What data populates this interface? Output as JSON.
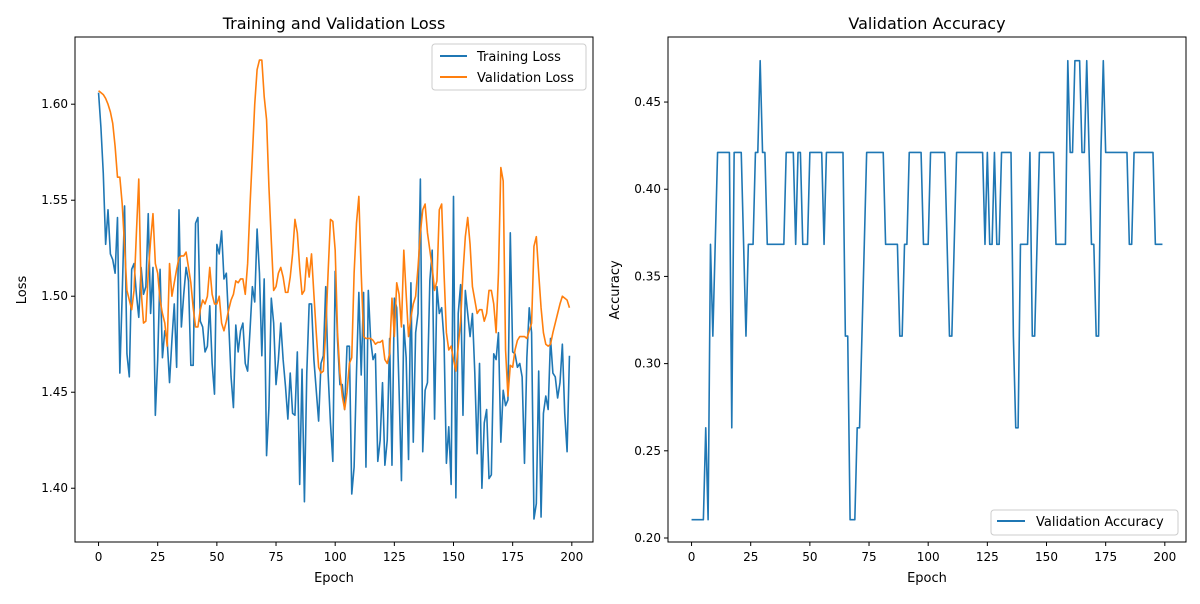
{
  "chart_data": [
    {
      "type": "line",
      "title": "Training and Validation Loss",
      "xlabel": "Epoch",
      "ylabel": "Loss",
      "xlim": [
        -9.95,
        208.95
      ],
      "ylim": [
        1.372,
        1.635
      ],
      "xticks": [
        0,
        25,
        50,
        75,
        100,
        125,
        150,
        175,
        200
      ],
      "yticks": [
        1.4,
        1.45,
        1.5,
        1.55,
        1.6
      ],
      "ytick_format": 2,
      "grid": false,
      "legend": "top-right",
      "series": [
        {
          "name": "Training Loss",
          "color": "#1f77b4",
          "values": [
            1.606,
            1.588,
            1.564,
            1.527,
            1.545,
            1.522,
            1.519,
            1.512,
            1.541,
            1.46,
            1.501,
            1.547,
            1.47,
            1.458,
            1.514,
            1.517,
            1.501,
            1.489,
            1.515,
            1.501,
            1.505,
            1.543,
            1.491,
            1.515,
            1.438,
            1.467,
            1.514,
            1.468,
            1.482,
            1.477,
            1.455,
            1.477,
            1.496,
            1.463,
            1.545,
            1.484,
            1.501,
            1.515,
            1.508,
            1.464,
            1.464,
            1.538,
            1.541,
            1.487,
            1.484,
            1.471,
            1.474,
            1.495,
            1.465,
            1.449,
            1.527,
            1.522,
            1.534,
            1.509,
            1.512,
            1.486,
            1.458,
            1.442,
            1.485,
            1.471,
            1.482,
            1.486,
            1.465,
            1.461,
            1.482,
            1.505,
            1.497,
            1.535,
            1.512,
            1.469,
            1.509,
            1.417,
            1.442,
            1.499,
            1.486,
            1.454,
            1.467,
            1.486,
            1.467,
            1.453,
            1.436,
            1.46,
            1.439,
            1.438,
            1.471,
            1.402,
            1.462,
            1.393,
            1.46,
            1.496,
            1.496,
            1.467,
            1.451,
            1.435,
            1.465,
            1.469,
            1.505,
            1.46,
            1.434,
            1.414,
            1.513,
            1.477,
            1.454,
            1.454,
            1.441,
            1.474,
            1.474,
            1.397,
            1.411,
            1.46,
            1.502,
            1.459,
            1.502,
            1.411,
            1.503,
            1.477,
            1.467,
            1.47,
            1.414,
            1.425,
            1.455,
            1.412,
            1.425,
            1.478,
            1.412,
            1.499,
            1.494,
            1.451,
            1.404,
            1.485,
            1.468,
            1.415,
            1.507,
            1.424,
            1.481,
            1.491,
            1.561,
            1.419,
            1.451,
            1.455,
            1.508,
            1.524,
            1.436,
            1.505,
            1.491,
            1.494,
            1.477,
            1.413,
            1.432,
            1.402,
            1.552,
            1.395,
            1.491,
            1.506,
            1.438,
            1.503,
            1.491,
            1.479,
            1.491,
            1.46,
            1.418,
            1.465,
            1.4,
            1.434,
            1.441,
            1.405,
            1.407,
            1.47,
            1.467,
            1.481,
            1.424,
            1.451,
            1.443,
            1.446,
            1.533,
            1.471,
            1.47,
            1.463,
            1.465,
            1.458,
            1.413,
            1.468,
            1.494,
            1.481,
            1.384,
            1.392,
            1.461,
            1.385,
            1.439,
            1.448,
            1.441,
            1.478,
            1.46,
            1.458,
            1.447,
            1.455,
            1.475,
            1.439,
            1.419,
            1.469
          ]
        },
        {
          "name": "Validation Loss",
          "color": "#ff7f0e",
          "values": [
            1.607,
            1.606,
            1.605,
            1.603,
            1.6,
            1.596,
            1.59,
            1.578,
            1.562,
            1.562,
            1.548,
            1.526,
            1.503,
            1.498,
            1.493,
            1.503,
            1.533,
            1.561,
            1.503,
            1.486,
            1.487,
            1.512,
            1.529,
            1.543,
            1.517,
            1.512,
            1.498,
            1.491,
            1.486,
            1.474,
            1.517,
            1.5,
            1.507,
            1.514,
            1.52,
            1.521,
            1.521,
            1.523,
            1.515,
            1.507,
            1.494,
            1.484,
            1.484,
            1.493,
            1.498,
            1.496,
            1.5,
            1.515,
            1.501,
            1.496,
            1.496,
            1.5,
            1.486,
            1.482,
            1.487,
            1.493,
            1.498,
            1.501,
            1.508,
            1.507,
            1.509,
            1.509,
            1.501,
            1.517,
            1.547,
            1.573,
            1.6,
            1.618,
            1.623,
            1.623,
            1.604,
            1.592,
            1.557,
            1.529,
            1.503,
            1.505,
            1.512,
            1.515,
            1.51,
            1.502,
            1.502,
            1.51,
            1.522,
            1.54,
            1.533,
            1.515,
            1.501,
            1.503,
            1.52,
            1.51,
            1.522,
            1.501,
            1.481,
            1.463,
            1.46,
            1.461,
            1.482,
            1.512,
            1.54,
            1.539,
            1.524,
            1.481,
            1.46,
            1.448,
            1.441,
            1.45,
            1.465,
            1.468,
            1.512,
            1.538,
            1.552,
            1.512,
            1.479,
            1.478,
            1.478,
            1.478,
            1.477,
            1.475,
            1.476,
            1.476,
            1.477,
            1.467,
            1.465,
            1.47,
            1.499,
            1.479,
            1.507,
            1.501,
            1.484,
            1.524,
            1.501,
            1.479,
            1.489,
            1.496,
            1.5,
            1.515,
            1.533,
            1.545,
            1.548,
            1.533,
            1.524,
            1.515,
            1.503,
            1.508,
            1.545,
            1.548,
            1.512,
            1.481,
            1.472,
            1.474,
            1.467,
            1.461,
            1.474,
            1.487,
            1.512,
            1.531,
            1.541,
            1.527,
            1.505,
            1.498,
            1.491,
            1.493,
            1.493,
            1.487,
            1.491,
            1.503,
            1.503,
            1.496,
            1.481,
            1.512,
            1.567,
            1.56,
            1.472,
            1.448,
            1.464,
            1.463,
            1.472,
            1.477,
            1.479,
            1.479,
            1.479,
            1.478,
            1.482,
            1.486,
            1.526,
            1.531,
            1.512,
            1.494,
            1.481,
            1.475,
            1.474,
            1.475,
            1.481,
            1.486,
            1.491,
            1.496,
            1.5,
            1.499,
            1.498,
            1.494
          ]
        }
      ]
    },
    {
      "type": "line",
      "title": "Validation Accuracy",
      "xlabel": "Epoch",
      "ylabel": "Accuracy",
      "xlim": [
        -9.95,
        208.95
      ],
      "ylim": [
        0.1977,
        0.4873
      ],
      "xticks": [
        0,
        25,
        50,
        75,
        100,
        125,
        150,
        175,
        200
      ],
      "yticks": [
        0.2,
        0.25,
        0.3,
        0.35,
        0.4,
        0.45
      ],
      "ytick_format": 2,
      "grid": false,
      "legend": "bottom-right",
      "series": [
        {
          "name": "Validation Accuracy",
          "color": "#1f77b4",
          "values": [
            0.2105,
            0.2105,
            0.2105,
            0.2105,
            0.2105,
            0.2105,
            0.2632,
            0.2105,
            0.3684,
            0.3158,
            0.3684,
            0.4211,
            0.4211,
            0.4211,
            0.4211,
            0.4211,
            0.4211,
            0.2632,
            0.4211,
            0.4211,
            0.4211,
            0.4211,
            0.3684,
            0.3158,
            0.3684,
            0.3684,
            0.3684,
            0.4211,
            0.4211,
            0.4737,
            0.4211,
            0.4211,
            0.3684,
            0.3684,
            0.3684,
            0.3684,
            0.3684,
            0.3684,
            0.3684,
            0.3684,
            0.4211,
            0.4211,
            0.4211,
            0.4211,
            0.3684,
            0.4211,
            0.4211,
            0.3684,
            0.3684,
            0.3684,
            0.4211,
            0.4211,
            0.4211,
            0.4211,
            0.4211,
            0.4211,
            0.3684,
            0.4211,
            0.4211,
            0.4211,
            0.4211,
            0.4211,
            0.4211,
            0.4211,
            0.4211,
            0.3158,
            0.3158,
            0.2105,
            0.2105,
            0.2105,
            0.2632,
            0.2632,
            0.3158,
            0.3684,
            0.4211,
            0.4211,
            0.4211,
            0.4211,
            0.4211,
            0.4211,
            0.4211,
            0.4211,
            0.3684,
            0.3684,
            0.3684,
            0.3684,
            0.3684,
            0.3684,
            0.3158,
            0.3158,
            0.3684,
            0.3684,
            0.4211,
            0.4211,
            0.4211,
            0.4211,
            0.4211,
            0.4211,
            0.3684,
            0.3684,
            0.3684,
            0.4211,
            0.4211,
            0.4211,
            0.4211,
            0.4211,
            0.4211,
            0.4211,
            0.3684,
            0.3158,
            0.3158,
            0.3684,
            0.4211,
            0.4211,
            0.4211,
            0.4211,
            0.4211,
            0.4211,
            0.4211,
            0.4211,
            0.4211,
            0.4211,
            0.4211,
            0.4211,
            0.3684,
            0.4211,
            0.3684,
            0.3684,
            0.4211,
            0.3684,
            0.3684,
            0.4211,
            0.4211,
            0.4211,
            0.4211,
            0.4211,
            0.3158,
            0.2632,
            0.2632,
            0.3684,
            0.3684,
            0.3684,
            0.3684,
            0.4211,
            0.3158,
            0.3158,
            0.3684,
            0.4211,
            0.4211,
            0.4211,
            0.4211,
            0.4211,
            0.4211,
            0.4211,
            0.3684,
            0.3684,
            0.3684,
            0.3684,
            0.3684,
            0.4737,
            0.4211,
            0.4211,
            0.4737,
            0.4737,
            0.4737,
            0.4211,
            0.4211,
            0.4737,
            0.4211,
            0.3684,
            0.3684,
            0.3158,
            0.3158,
            0.4211,
            0.4737,
            0.4211,
            0.4211,
            0.4211,
            0.4211,
            0.4211,
            0.4211,
            0.4211,
            0.4211,
            0.4211,
            0.4211,
            0.3684,
            0.3684,
            0.4211,
            0.4211,
            0.4211,
            0.4211,
            0.4211,
            0.4211,
            0.4211,
            0.4211,
            0.4211,
            0.3684,
            0.3684,
            0.3684,
            0.3684
          ]
        }
      ]
    }
  ]
}
